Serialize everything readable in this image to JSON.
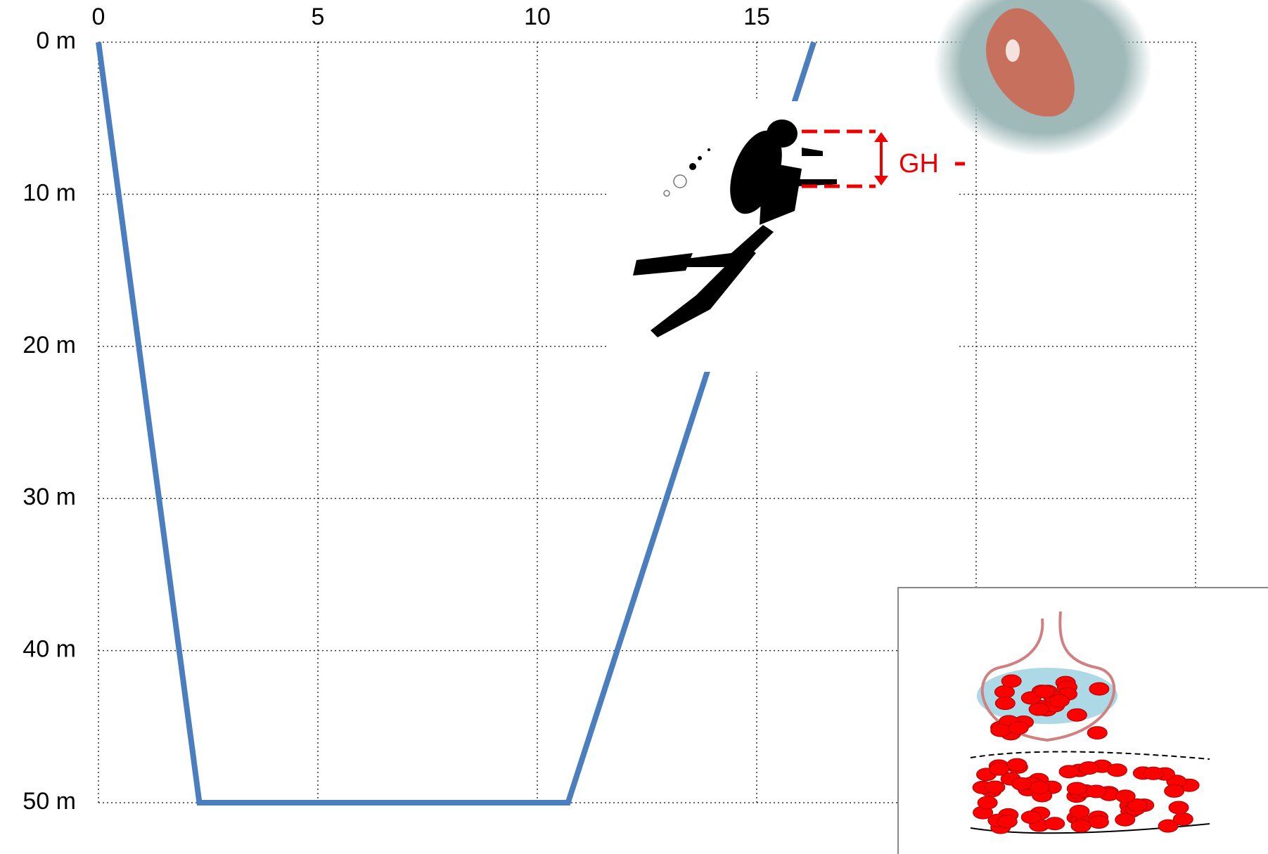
{
  "chart_data": {
    "type": "line",
    "annotations": [
      "GH"
    ],
    "x": [
      0,
      2.3,
      10.7,
      16.3
    ],
    "series": [
      {
        "color": "#4a7ebf",
        "values": [
          0,
          50,
          50,
          0
        ]
      }
    ],
    "xlim": [
      0,
      25
    ],
    "xticks": [
      0,
      5,
      10,
      15
    ],
    "xgrid": [
      0,
      5,
      10,
      15,
      20,
      25
    ],
    "ylim": [
      0,
      50
    ],
    "yticks": [
      {
        "value": 0,
        "label": "0 m"
      },
      {
        "value": 10,
        "label": "10 m"
      },
      {
        "value": 20,
        "label": "20 m"
      },
      {
        "value": 30,
        "label": "30 m"
      },
      {
        "value": 40,
        "label": "40 m"
      },
      {
        "value": 50,
        "label": "50 m"
      }
    ],
    "grid": true
  }
}
